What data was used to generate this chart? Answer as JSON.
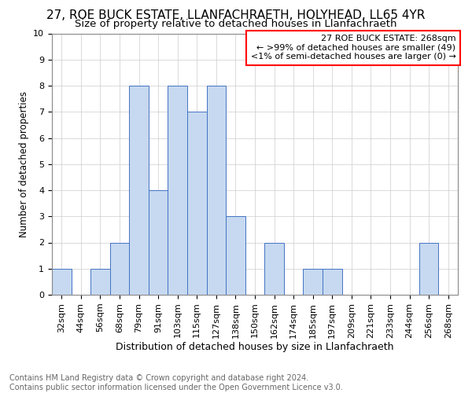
{
  "title1": "27, ROE BUCK ESTATE, LLANFACHRAETH, HOLYHEAD, LL65 4YR",
  "title2": "Size of property relative to detached houses in Llanfachraeth",
  "xlabel": "Distribution of detached houses by size in Llanfachraeth",
  "ylabel": "Number of detached properties",
  "footnote": "Contains HM Land Registry data © Crown copyright and database right 2024.\nContains public sector information licensed under the Open Government Licence v3.0.",
  "categories": [
    "32sqm",
    "44sqm",
    "56sqm",
    "68sqm",
    "79sqm",
    "91sqm",
    "103sqm",
    "115sqm",
    "127sqm",
    "138sqm",
    "150sqm",
    "162sqm",
    "174sqm",
    "185sqm",
    "197sqm",
    "209sqm",
    "221sqm",
    "233sqm",
    "244sqm",
    "256sqm",
    "268sqm"
  ],
  "values": [
    1,
    0,
    1,
    2,
    8,
    4,
    8,
    7,
    8,
    3,
    0,
    2,
    0,
    1,
    1,
    0,
    0,
    0,
    0,
    2,
    0
  ],
  "bar_color": "#c6d9f0",
  "bar_edge_color": "#4472c4",
  "annotation_box_text": "27 ROE BUCK ESTATE: 268sqm\n← >99% of detached houses are smaller (49)\n<1% of semi-detached houses are larger (0) →",
  "annotation_box_color": "#ff0000",
  "annotation_box_bg": "#ffffff",
  "ylim": [
    0,
    10
  ],
  "yticks": [
    0,
    1,
    2,
    3,
    4,
    5,
    6,
    7,
    8,
    9,
    10
  ],
  "grid_color": "#cccccc",
  "title1_fontsize": 11,
  "title2_fontsize": 9.5,
  "xlabel_fontsize": 9,
  "ylabel_fontsize": 8.5,
  "tick_fontsize": 8,
  "footnote_fontsize": 7,
  "ann_fontsize": 8
}
